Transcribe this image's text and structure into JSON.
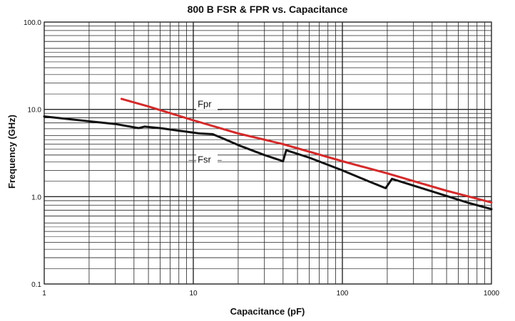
{
  "chart_data": {
    "type": "line",
    "title": "800 B FSR & FPR vs. Capacitance",
    "xlabel": "Capacitance (pF)",
    "ylabel": "Frequency (GHz)",
    "x_scale": "log",
    "y_scale": "log",
    "xlim": [
      1,
      1000
    ],
    "ylim": [
      0.1,
      100
    ],
    "x_ticks": [
      1,
      10,
      100,
      1000
    ],
    "x_tick_labels": [
      "1",
      "10",
      "100",
      "1000"
    ],
    "y_ticks": [
      0.1,
      1,
      10,
      100
    ],
    "y_tick_labels": [
      "0.1",
      "1.0",
      "10.0",
      "100.0"
    ],
    "grid": true,
    "series": [
      {
        "name": "Fpr",
        "color": "#d42a2a",
        "points": [
          [
            3.3,
            13.2
          ],
          [
            5,
            10.8
          ],
          [
            10,
            7.5
          ],
          [
            20,
            5.3
          ],
          [
            40,
            4.0
          ],
          [
            100,
            2.55
          ],
          [
            200,
            1.85
          ],
          [
            500,
            1.17
          ],
          [
            1000,
            0.86
          ]
        ]
      },
      {
        "name": "Fsr",
        "color": "#111111",
        "points": [
          [
            1,
            8.3
          ],
          [
            2,
            7.3
          ],
          [
            3,
            6.8
          ],
          [
            4.3,
            6.1
          ],
          [
            4.7,
            6.35
          ],
          [
            6,
            6.1
          ],
          [
            8,
            5.7
          ],
          [
            11,
            5.3
          ],
          [
            13.5,
            5.2
          ],
          [
            16,
            4.6
          ],
          [
            20,
            3.9
          ],
          [
            30,
            3.0
          ],
          [
            40,
            2.55
          ],
          [
            42,
            3.4
          ],
          [
            60,
            2.8
          ],
          [
            100,
            2.0
          ],
          [
            150,
            1.5
          ],
          [
            195,
            1.25
          ],
          [
            215,
            1.6
          ],
          [
            400,
            1.15
          ],
          [
            700,
            0.85
          ],
          [
            1000,
            0.72
          ]
        ]
      }
    ],
    "annotations": [
      "Fpr",
      "Fsr"
    ]
  }
}
